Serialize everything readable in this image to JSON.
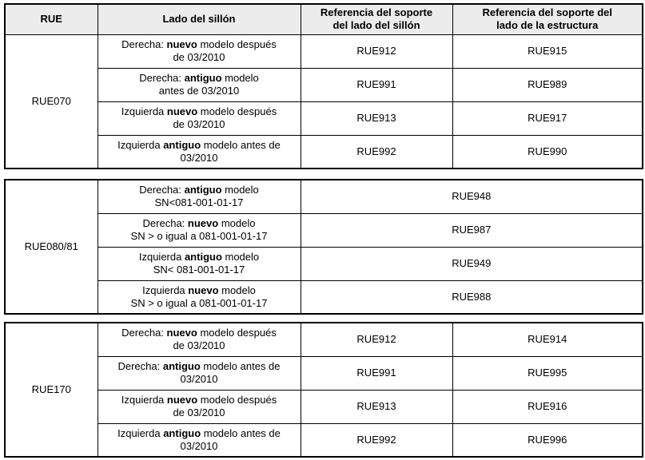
{
  "header": {
    "columns": [
      "RUE",
      "Lado del sillón",
      "Referencia del soporte\ndel lado del sillón",
      "Referencia del soporte del\nlado de la estructura"
    ]
  },
  "tables": [
    {
      "rue": "RUE070",
      "rows": [
        {
          "lado": "Derecha: **nuevo** modelo después\nde 03/2010",
          "ref_sillon": "RUE912",
          "ref_estructura": "RUE915"
        },
        {
          "lado": "Derecha: **antiguo** modelo\nantes de 03/2010",
          "ref_sillon": "RUE991",
          "ref_estructura": "RUE989"
        },
        {
          "lado": "Izquierda **nuevo** modelo después\nde 03/2010",
          "ref_sillon": "RUE913",
          "ref_estructura": "RUE917"
        },
        {
          "lado": "Izquierda **antiguo** modelo antes de\n03/2010",
          "ref_sillon": "RUE992",
          "ref_estructura": "RUE990"
        }
      ]
    },
    {
      "rue": "RUE080/81",
      "rows": [
        {
          "lado": "Derecha: **antiguo** modelo\nSN<081-001-01-17",
          "ref": "RUE948"
        },
        {
          "lado": "Derecha: **nuevo** modelo\nSN > o igual a 081-001-01-17",
          "ref": "RUE987"
        },
        {
          "lado": "Izquierda **antiguo** modelo\nSN< 081-001-01-17",
          "ref": "RUE949"
        },
        {
          "lado": "Izquierda **nuevo** modelo\nSN > o igual a 081-001-01-17",
          "ref": "RUE988"
        }
      ]
    },
    {
      "rue": "RUE170",
      "rows": [
        {
          "lado": "Derecha: **nuevo** modelo después\nde 03/2010",
          "ref_sillon": "RUE912",
          "ref_estructura": "RUE914"
        },
        {
          "lado": "Derecha: **antiguo** modelo antes de\n03/2010",
          "ref_sillon": "RUE991",
          "ref_estructura": "RUE995"
        },
        {
          "lado": "Izquierda **nuevo** modelo después\nde 03/2010",
          "ref_sillon": "RUE913",
          "ref_estructura": "RUE916"
        },
        {
          "lado": "Izquierda **antiguo** modelo antes de\n03/2010",
          "ref_sillon": "RUE992",
          "ref_estructura": "RUE996"
        }
      ]
    }
  ],
  "colors": {
    "header_bg": "#ececec",
    "border": "#000000",
    "text": "#000000",
    "background": "#ffffff"
  }
}
